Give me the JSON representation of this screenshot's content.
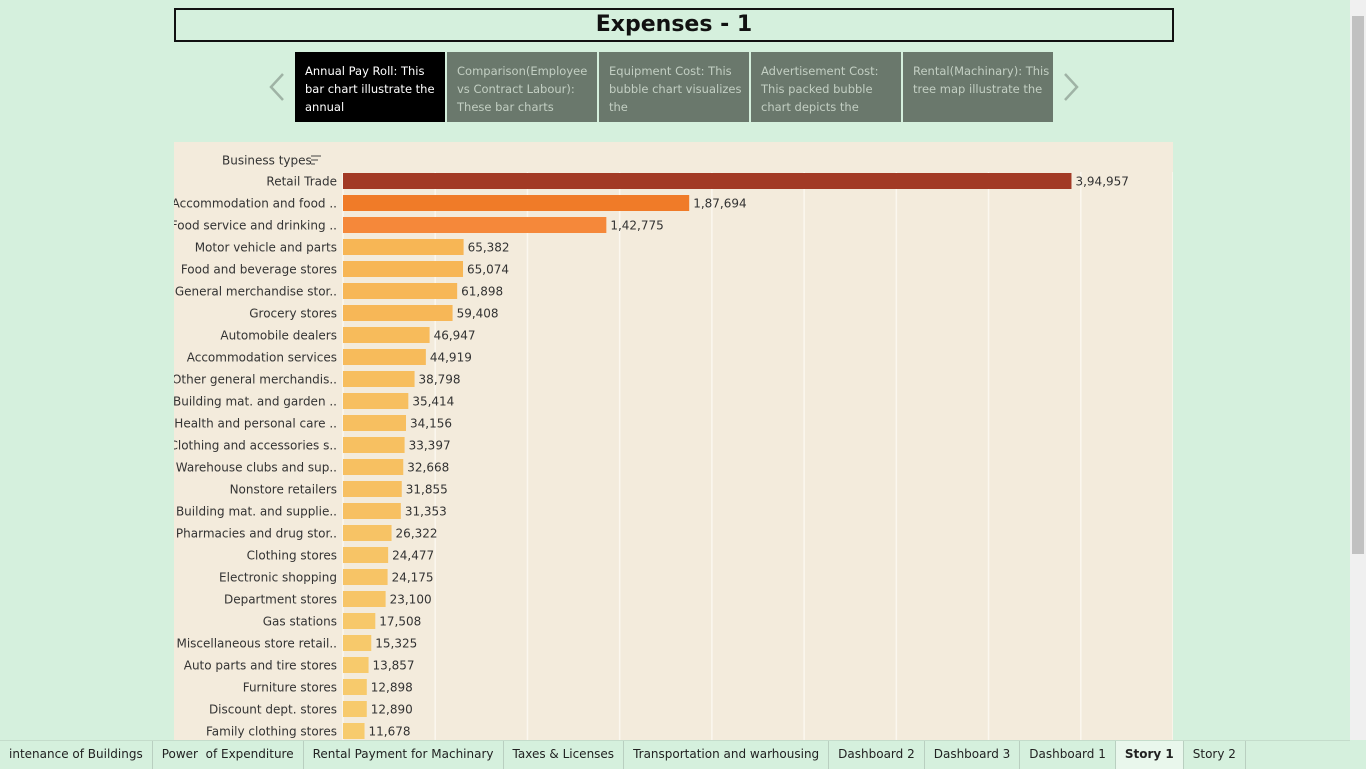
{
  "chart_data": {
    "type": "bar",
    "title": "Expenses - 1",
    "y_axis_label": "Business types",
    "categories": [
      "Retail Trade",
      "Accommodation and food ..",
      "Food service and drinking ..",
      "Motor vehicle and parts",
      "Food and beverage stores",
      "General merchandise stor..",
      "Grocery stores",
      "Automobile dealers",
      "Accommodation services",
      "Other general merchandis..",
      "Building mat. and garden ..",
      "Health and personal care ..",
      "Clothing and accessories s..",
      "Warehouse clubs and sup..",
      "Nonstore retailers",
      "Building mat. and supplie..",
      "Pharmacies and drug stor..",
      "Clothing stores",
      "Electronic shopping",
      "Department stores",
      "Gas stations",
      "Miscellaneous store retail..",
      "Auto parts and tire stores",
      "Furniture stores",
      "Discount dept. stores",
      "Family clothing stores"
    ],
    "values": [
      394957,
      187694,
      142775,
      65382,
      65074,
      61898,
      59408,
      46947,
      44919,
      38798,
      35414,
      34156,
      33397,
      32668,
      31855,
      31353,
      26322,
      24477,
      24175,
      23100,
      17508,
      15325,
      13857,
      12898,
      12890,
      11678
    ],
    "value_labels": [
      "3,94,957",
      "1,87,694",
      "1,42,775",
      "65,382",
      "65,074",
      "61,898",
      "59,408",
      "46,947",
      "44,919",
      "38,798",
      "35,414",
      "34,156",
      "33,397",
      "32,668",
      "31,855",
      "31,353",
      "26,322",
      "24,477",
      "24,175",
      "23,100",
      "17,508",
      "15,325",
      "13,857",
      "12,898",
      "12,890",
      "11,678"
    ],
    "colors": [
      "#a23a25",
      "#f07b28",
      "#f5883a",
      "#f7b655",
      "#f7b655",
      "#f7b757",
      "#f7b757",
      "#f7bb5b",
      "#f7bb5b",
      "#f7be5e",
      "#f7bf60",
      "#f7bf60",
      "#f7c061",
      "#f7c061",
      "#f7c062",
      "#f7c062",
      "#f7c365",
      "#f7c466",
      "#f7c466",
      "#f7c567",
      "#f7c86a",
      "#f7c96b",
      "#f7ca6c",
      "#f7ca6c",
      "#f7ca6c",
      "#f7cb6d"
    ],
    "xlim": [
      0,
      450000
    ],
    "xticks": [
      0,
      50000,
      100000,
      150000,
      200000,
      250000,
      300000,
      350000,
      400000,
      450000
    ],
    "grid": true
  },
  "story_points": [
    "Annual Pay Roll: This bar chart illustrate the annual",
    "Comparison(Employee vs Contract Labour): These bar charts",
    "Equipment Cost: This bubble chart visualizes the",
    "Advertisement Cost: This packed bubble chart depicts the",
    "Rental(Machinary): This tree map illustrate the"
  ],
  "tabs": [
    "intenance of Buildings",
    "Power  of Expenditure",
    "Rental Payment for Machinary",
    "Taxes & Licenses",
    "Transportation and warhousing",
    "Dashboard 2",
    "Dashboard 3",
    "Dashboard 1",
    "Story 1",
    "Story 2"
  ]
}
